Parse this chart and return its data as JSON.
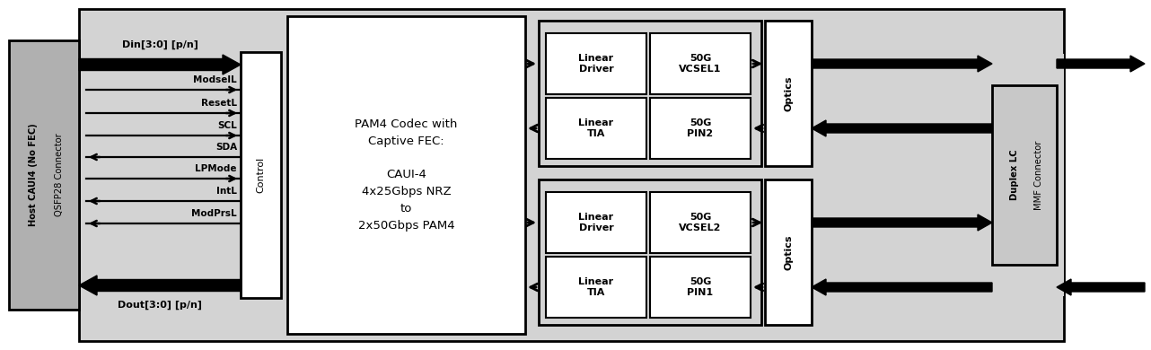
{
  "bg_module": "#d3d3d3",
  "bg_white": "#ffffff",
  "bg_left_conn": "#b0b0b0",
  "bg_right_conn": "#c8c8c8",
  "bg_right_outer": "#d3d3d3",
  "text_color": "#000000",
  "left_conn_label1": "Host CAUI4 (No FEC)",
  "left_conn_label2": "QSFP28 Connector",
  "right_conn_label1": "Duplex LC",
  "right_conn_label2": "MMF Connector",
  "din_label": "Din[3:0] [p/n]",
  "dout_label": "Dout[3:0] [p/n]",
  "control_label": "Control",
  "pam4_text": "PAM4 Codec with\nCaptive FEC:\n\nCAUI-4\n4x25Gbps NRZ\nto\n2x50Gbps PAM4",
  "control_signals": [
    "ModselL",
    "ResetL",
    "SCL",
    "SDA",
    "LPMode",
    "IntL",
    "ModPrsL"
  ],
  "signal_directions": [
    "right",
    "right",
    "right",
    "left",
    "right",
    "left",
    "left"
  ],
  "top_boxes": [
    "Linear\nDriver",
    "50G\nVCSEL1",
    "Linear\nTIA",
    "50G\nPIN2"
  ],
  "bot_boxes": [
    "Linear\nDriver",
    "50G\nVCSEL2",
    "Linear\nTIA",
    "50G\nPIN1"
  ],
  "optics_label": "Optics"
}
